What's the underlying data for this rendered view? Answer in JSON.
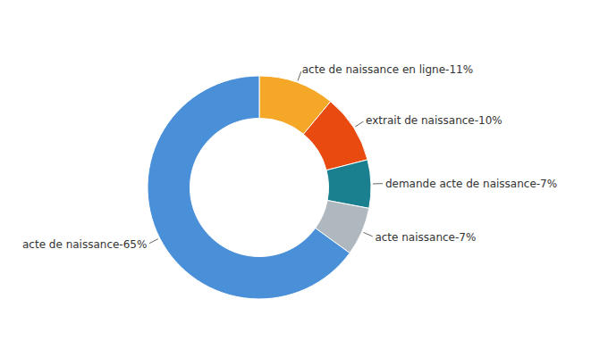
{
  "chart_data": {
    "type": "donut",
    "categories": [
      "acte de naissance en ligne-11%",
      "extrait de naissance-10%",
      "demande acte de naissance-7%",
      "acte naissance-7%",
      "acte de naissance-65%"
    ],
    "values": [
      11,
      10,
      7,
      7,
      65
    ],
    "colors": [
      "#F5A827",
      "#E84A10",
      "#1A7F8E",
      "#B0B8BF",
      "#4A90D9"
    ]
  }
}
